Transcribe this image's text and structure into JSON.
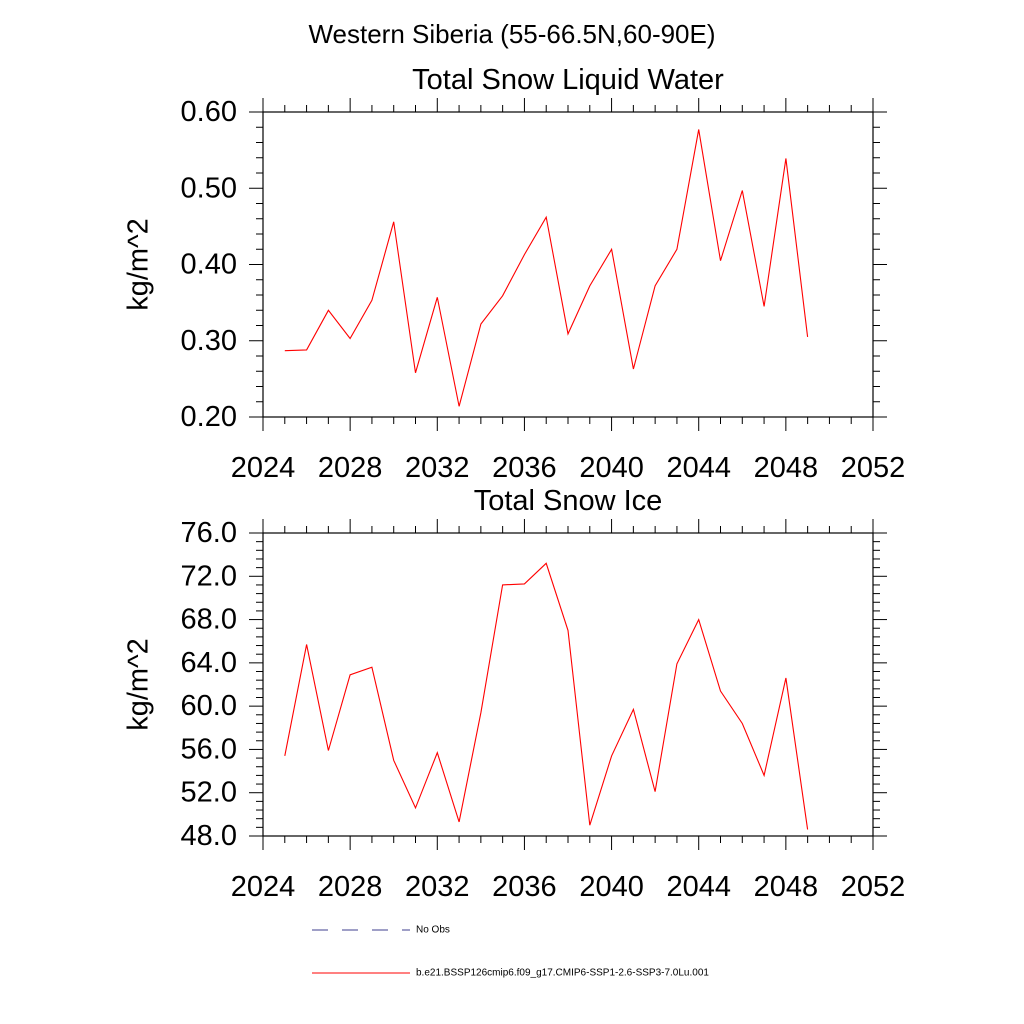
{
  "figure": {
    "suptitle": "Western Siberia (55-66.5N,60-90E)"
  },
  "legend": {
    "placement": "bottom",
    "entries": [
      {
        "label": "No Obs",
        "style": "dashed",
        "color": "#3f3f8f"
      },
      {
        "label": "b.e21.BSSP126cmip6.f09_g17.CMIP6-SSP1-2.6-SSP3-7.0Lu.001",
        "style": "solid",
        "color": "#ff0000"
      }
    ]
  },
  "chart_data": [
    {
      "type": "line",
      "title": "Total Snow Liquid Water",
      "xlabel": "",
      "ylabel": "kg/m^2",
      "xlim": [
        2024,
        2052
      ],
      "ylim": [
        0.2,
        0.6
      ],
      "xticks": [
        2024,
        2028,
        2032,
        2036,
        2040,
        2044,
        2048,
        2052
      ],
      "yticks": [
        0.2,
        0.3,
        0.4,
        0.5,
        0.6
      ],
      "ytick_labels": [
        "0.20",
        "0.30",
        "0.40",
        "0.50",
        "0.60"
      ],
      "grid": false,
      "series": [
        {
          "name": "b.e21.BSSP126cmip6.f09_g17.CMIP6-SSP1-2.6-SSP3-7.0Lu.001",
          "color": "#ff0000",
          "x": [
            2025,
            2026,
            2027,
            2028,
            2029,
            2030,
            2031,
            2032,
            2033,
            2034,
            2035,
            2036,
            2037,
            2038,
            2039,
            2040,
            2041,
            2042,
            2043,
            2044,
            2045,
            2046,
            2047,
            2048,
            2049
          ],
          "y": [
            0.287,
            0.288,
            0.34,
            0.303,
            0.353,
            0.456,
            0.258,
            0.357,
            0.214,
            0.322,
            0.359,
            0.413,
            0.462,
            0.309,
            0.372,
            0.42,
            0.263,
            0.372,
            0.42,
            0.577,
            0.405,
            0.497,
            0.345,
            0.539,
            0.305
          ]
        }
      ]
    },
    {
      "type": "line",
      "title": "Total Snow Ice",
      "xlabel": "",
      "ylabel": "kg/m^2",
      "xlim": [
        2024,
        2052
      ],
      "ylim": [
        48,
        76
      ],
      "xticks": [
        2024,
        2028,
        2032,
        2036,
        2040,
        2044,
        2048,
        2052
      ],
      "yticks": [
        48,
        52,
        56,
        60,
        64,
        68,
        72,
        76
      ],
      "ytick_labels": [
        "48.0",
        "52.0",
        "56.0",
        "60.0",
        "64.0",
        "68.0",
        "72.0",
        "76.0"
      ],
      "grid": false,
      "series": [
        {
          "name": "b.e21.BSSP126cmip6.f09_g17.CMIP6-SSP1-2.6-SSP3-7.0Lu.001",
          "color": "#ff0000",
          "x": [
            2025,
            2026,
            2027,
            2028,
            2029,
            2030,
            2031,
            2032,
            2033,
            2034,
            2035,
            2036,
            2037,
            2038,
            2039,
            2040,
            2041,
            2042,
            2043,
            2044,
            2045,
            2046,
            2047,
            2048,
            2049
          ],
          "y": [
            55.4,
            65.7,
            55.9,
            62.9,
            63.6,
            55.0,
            50.6,
            55.7,
            49.3,
            59.4,
            71.2,
            71.3,
            73.2,
            67.0,
            49.0,
            55.4,
            59.7,
            52.1,
            63.9,
            68.0,
            61.4,
            58.4,
            53.6,
            62.6,
            48.6
          ]
        }
      ]
    }
  ]
}
